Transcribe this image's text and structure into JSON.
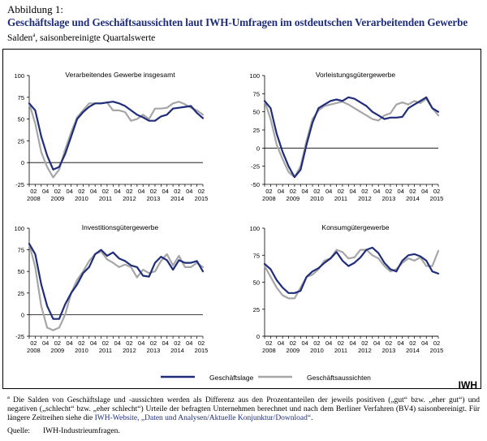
{
  "header": {
    "label": "Abbildung 1:",
    "title": "Geschäftslage und Geschäftsaussichten laut IWH-Umfragen im ostdeutschen Verarbeitenden Gewerbe",
    "subtitle_main": "Salden",
    "subtitle_sup": "a",
    "subtitle_rest": ", saisonbereinigte Quartalswerte"
  },
  "legend": {
    "items": [
      {
        "label": "Geschäftslage",
        "color": "#1f2d7a"
      },
      {
        "label": "Geschäftsaussichten",
        "color": "#a6a6a6"
      }
    ]
  },
  "brand": "IWH",
  "footnote": {
    "sup": "a",
    "text1": " Die Salden von Geschäftslage und -aussichten werden als Differenz aus den Prozentanteilen der jeweils positiven („gut“ bzw. „eher gut“) und negativen („schlecht“ bzw. „eher schlecht“) Urteile der befragten Unternehmen berechnet und nach dem Berliner Verfahren (BV4) saisonbereinigt. Für längere Zeitreihen siehe die ",
    "link": "IWH-Website, „Daten und Analysen/Aktuelle Konjunktur/Download“",
    "text2": "."
  },
  "source": {
    "label": "Quelle:",
    "value": "IWH-Industrieumfragen."
  },
  "chart_data": [
    {
      "type": "line",
      "title": "Verarbeitendes Gewerbe insgesamt",
      "ylim": [
        -25,
        100
      ],
      "yticks": [
        -25,
        0,
        25,
        50,
        75,
        100
      ],
      "x_quarter_labels": [
        "02",
        "04",
        "02",
        "04",
        "02",
        "04",
        "02",
        "04",
        "02",
        "04",
        "02",
        "04",
        "02",
        "04",
        "02"
      ],
      "x_year_labels": [
        "2008",
        "2009",
        "2010",
        "2011",
        "2012",
        "2013",
        "2014",
        "2015"
      ],
      "x": [
        "2008Q1",
        "2008Q2",
        "2008Q3",
        "2008Q4",
        "2009Q1",
        "2009Q2",
        "2009Q3",
        "2009Q4",
        "2010Q1",
        "2010Q2",
        "2010Q3",
        "2010Q4",
        "2011Q1",
        "2011Q2",
        "2011Q3",
        "2011Q4",
        "2012Q1",
        "2012Q2",
        "2012Q3",
        "2012Q4",
        "2013Q1",
        "2013Q2",
        "2013Q3",
        "2013Q4",
        "2014Q1",
        "2014Q2",
        "2014Q3",
        "2014Q4",
        "2015Q1",
        "2015Q2"
      ],
      "series": [
        {
          "name": "Geschäftslage",
          "values": [
            68,
            60,
            30,
            8,
            -8,
            -5,
            10,
            30,
            50,
            58,
            64,
            68,
            68,
            69,
            70,
            68,
            65,
            60,
            55,
            52,
            48,
            48,
            53,
            55,
            62,
            63,
            64,
            65,
            57,
            51
          ]
        },
        {
          "name": "Geschäftsaussichten",
          "values": [
            68,
            45,
            12,
            -5,
            -17,
            -8,
            15,
            35,
            52,
            60,
            68,
            68,
            68,
            69,
            60,
            60,
            58,
            48,
            50,
            55,
            50,
            62,
            62,
            63,
            68,
            70,
            67,
            63,
            60,
            55
          ]
        }
      ]
    },
    {
      "type": "line",
      "title": "Vorleistungsgütergewerbe",
      "ylim": [
        -50,
        100
      ],
      "yticks": [
        -50,
        -25,
        0,
        25,
        50,
        75,
        100
      ],
      "x_quarter_labels": [
        "02",
        "04",
        "02",
        "04",
        "02",
        "04",
        "02",
        "04",
        "02",
        "04",
        "02",
        "04",
        "02",
        "04",
        "02"
      ],
      "x_year_labels": [
        "2008",
        "2009",
        "2010",
        "2011",
        "2012",
        "2013",
        "2014",
        "2015"
      ],
      "x": [
        "2008Q1",
        "2008Q2",
        "2008Q3",
        "2008Q4",
        "2009Q1",
        "2009Q2",
        "2009Q3",
        "2009Q4",
        "2010Q1",
        "2010Q2",
        "2010Q3",
        "2010Q4",
        "2011Q1",
        "2011Q2",
        "2011Q3",
        "2011Q4",
        "2012Q1",
        "2012Q2",
        "2012Q3",
        "2012Q4",
        "2013Q1",
        "2013Q2",
        "2013Q3",
        "2013Q4",
        "2014Q1",
        "2014Q2",
        "2014Q3",
        "2014Q4",
        "2015Q1",
        "2015Q2"
      ],
      "series": [
        {
          "name": "Geschäftslage",
          "values": [
            65,
            55,
            20,
            -5,
            -25,
            -40,
            -30,
            5,
            35,
            55,
            60,
            65,
            67,
            65,
            70,
            68,
            63,
            58,
            50,
            45,
            40,
            42,
            42,
            43,
            55,
            60,
            65,
            70,
            55,
            50
          ]
        },
        {
          "name": "Geschäftsaussichten",
          "values": [
            65,
            40,
            5,
            -15,
            -33,
            -40,
            -25,
            10,
            40,
            52,
            58,
            60,
            62,
            64,
            60,
            55,
            50,
            45,
            40,
            38,
            45,
            48,
            60,
            63,
            60,
            65,
            62,
            68,
            55,
            45
          ]
        }
      ]
    },
    {
      "type": "line",
      "title": "Investitionsgütergewerbe",
      "ylim": [
        -25,
        100
      ],
      "yticks": [
        -25,
        0,
        25,
        50,
        75,
        100
      ],
      "x_quarter_labels": [
        "02",
        "04",
        "02",
        "04",
        "02",
        "04",
        "02",
        "04",
        "02",
        "04",
        "02",
        "04",
        "02",
        "04",
        "02"
      ],
      "x_year_labels": [
        "2008",
        "2009",
        "2010",
        "2011",
        "2012",
        "2013",
        "2014",
        "2015"
      ],
      "x": [
        "2008Q1",
        "2008Q2",
        "2008Q3",
        "2008Q4",
        "2009Q1",
        "2009Q2",
        "2009Q3",
        "2009Q4",
        "2010Q1",
        "2010Q2",
        "2010Q3",
        "2010Q4",
        "2011Q1",
        "2011Q2",
        "2011Q3",
        "2011Q4",
        "2012Q1",
        "2012Q2",
        "2012Q3",
        "2012Q4",
        "2013Q1",
        "2013Q2",
        "2013Q3",
        "2013Q4",
        "2014Q1",
        "2014Q2",
        "2014Q3",
        "2014Q4",
        "2015Q1",
        "2015Q2"
      ],
      "series": [
        {
          "name": "Geschäftslage",
          "values": [
            82,
            70,
            35,
            10,
            -5,
            -5,
            12,
            25,
            35,
            48,
            55,
            70,
            75,
            68,
            72,
            65,
            62,
            57,
            55,
            45,
            44,
            60,
            67,
            63,
            52,
            63,
            60,
            60,
            62,
            50
          ]
        },
        {
          "name": "Geschäftsaussichten",
          "values": [
            82,
            55,
            10,
            -15,
            -18,
            -15,
            0,
            25,
            40,
            50,
            62,
            70,
            73,
            64,
            60,
            55,
            58,
            55,
            43,
            52,
            48,
            50,
            62,
            70,
            57,
            68,
            55,
            55,
            60,
            55
          ]
        }
      ]
    },
    {
      "type": "line",
      "title": "Konsumgütergewerbe",
      "ylim": [
        0,
        100
      ],
      "yticks": [
        0,
        25,
        50,
        75,
        100
      ],
      "x_quarter_labels": [
        "02",
        "04",
        "02",
        "04",
        "02",
        "04",
        "02",
        "04",
        "02",
        "04",
        "02",
        "04",
        "02",
        "04",
        "02"
      ],
      "x_year_labels": [
        "2008",
        "2009",
        "2010",
        "2011",
        "2012",
        "2013",
        "2014",
        "2015"
      ],
      "x": [
        "2008Q1",
        "2008Q2",
        "2008Q3",
        "2008Q4",
        "2009Q1",
        "2009Q2",
        "2009Q3",
        "2009Q4",
        "2010Q1",
        "2010Q2",
        "2010Q3",
        "2010Q4",
        "2011Q1",
        "2011Q2",
        "2011Q3",
        "2011Q4",
        "2012Q1",
        "2012Q2",
        "2012Q3",
        "2012Q4",
        "2013Q1",
        "2013Q2",
        "2013Q3",
        "2013Q4",
        "2014Q1",
        "2014Q2",
        "2014Q3",
        "2014Q4",
        "2015Q1",
        "2015Q2"
      ],
      "series": [
        {
          "name": "Geschäftslage",
          "values": [
            67,
            62,
            52,
            45,
            40,
            40,
            42,
            55,
            60,
            63,
            68,
            72,
            78,
            70,
            65,
            68,
            73,
            80,
            82,
            77,
            68,
            62,
            60,
            70,
            75,
            76,
            74,
            70,
            60,
            58
          ]
        },
        {
          "name": "Geschäftsaussichten",
          "values": [
            65,
            55,
            45,
            38,
            35,
            35,
            45,
            55,
            57,
            62,
            70,
            72,
            80,
            78,
            72,
            73,
            80,
            80,
            75,
            72,
            65,
            60,
            62,
            68,
            72,
            70,
            73,
            65,
            65,
            79
          ]
        }
      ]
    }
  ]
}
